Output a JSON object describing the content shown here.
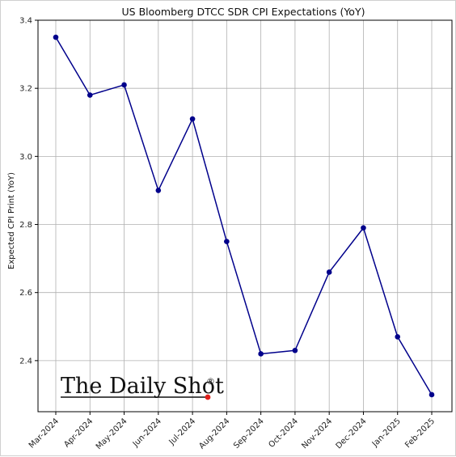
{
  "chart_data": {
    "type": "line",
    "title": "US Bloomberg DTCC SDR CPI Expectations (YoY)",
    "xlabel": "",
    "ylabel": "Expected CPI Print (YoY)",
    "categories": [
      "Mar-2024",
      "Apr-2024",
      "May-2024",
      "Jun-2024",
      "Jul-2024",
      "Aug-2024",
      "Sep-2024",
      "Oct-2024",
      "Nov-2024",
      "Dec-2024",
      "Jan-2025",
      "Feb-2025"
    ],
    "series": [
      {
        "values": [
          3.35,
          3.18,
          3.21,
          2.9,
          3.11,
          2.75,
          2.42,
          2.43,
          2.66,
          2.79,
          2.47,
          2.3
        ],
        "color": "#00008b"
      }
    ],
    "ylim": [
      2.25,
      3.4
    ],
    "yticks": [
      2.4,
      2.6,
      2.8,
      3.0,
      3.2,
      3.4
    ],
    "grid": true,
    "marker": "circle"
  },
  "watermark": {
    "text": "The Daily Shot",
    "mark": "®",
    "dot_color": "#e0201b"
  }
}
